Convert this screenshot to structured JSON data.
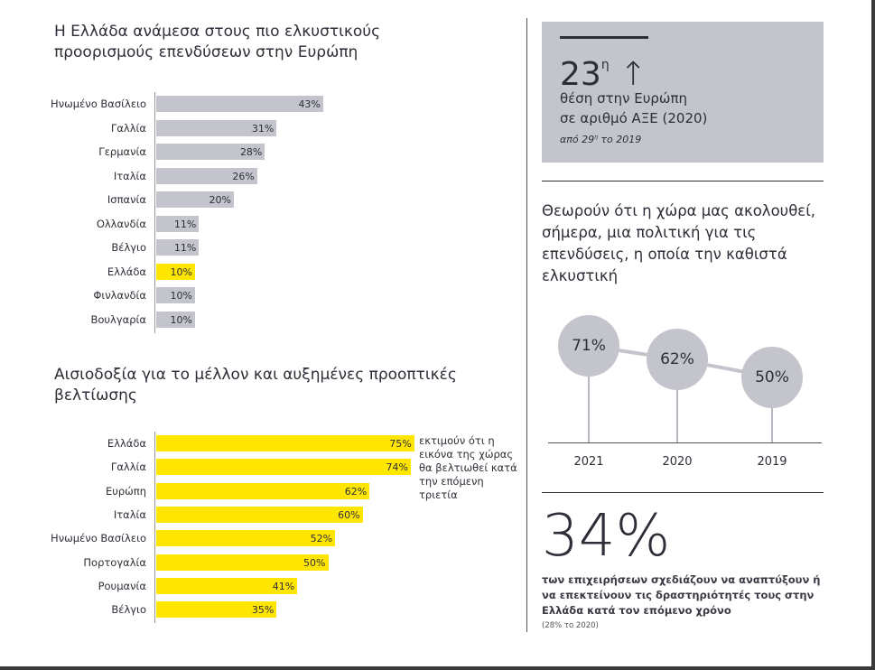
{
  "colors": {
    "grey_bar": "#c4c4cc",
    "yellow_bar": "#ffe600",
    "text": "#2e2e38"
  },
  "chart_data": [
    {
      "type": "bar",
      "orientation": "horizontal",
      "title": "Η Ελλάδα ανάμεσα στους πιο ελκυστικούς προορισμούς επενδύσεων στην Ευρώπη",
      "categories": [
        "Ηνωμένο Βασίλειο",
        "Γαλλία",
        "Γερμανία",
        "Ιταλία",
        "Ισπανία",
        "Ολλανδία",
        "Βέλγιο",
        "Ελλάδα",
        "Φινλανδία",
        "Βουλγαρία"
      ],
      "values": [
        43,
        31,
        28,
        26,
        20,
        11,
        11,
        10,
        10,
        10
      ],
      "labels": [
        "43%",
        "31%",
        "28%",
        "26%",
        "20%",
        "11%",
        "11%",
        "10%",
        "10%",
        "10%"
      ],
      "highlight": "Ελλάδα",
      "unit": "%"
    },
    {
      "type": "bar",
      "orientation": "horizontal",
      "title": "Αισιοδοξία για το μέλλον και αυξημένες προοπτικές βελτίωσης",
      "categories": [
        "Ελλάδα",
        "Γαλλία",
        "Ευρώπη",
        "Ιταλία",
        "Ηνωμένο Βασίλειο",
        "Πορτογαλία",
        "Ρουμανία",
        "Βέλγιο"
      ],
      "values": [
        75,
        74,
        62,
        60,
        52,
        50,
        41,
        35
      ],
      "labels": [
        "75%",
        "74%",
        "62%",
        "60%",
        "52%",
        "50%",
        "41%",
        "35%"
      ],
      "annotation": "εκτιμούν ότι η εικόνα της χώρας θα βελτιωθεί κατά την επόμενη τριετία",
      "unit": "%"
    },
    {
      "type": "line",
      "title": "Θεωρούν ότι η χώρα μας ακολουθεί, σήμερα, μια πολιτική για τις επενδύσεις, η οποία την καθιστά ελκυστική",
      "categories": [
        "2021",
        "2020",
        "2019"
      ],
      "values": [
        71,
        62,
        50
      ],
      "labels": [
        "71%",
        "62%",
        "50%"
      ],
      "unit": "%"
    }
  ],
  "rank": {
    "value": "23",
    "sup": "η",
    "arrow": "↑",
    "line1": "θέση στην Ευρώπη",
    "line2": "σε αριθμό ΑΞΕ (2020)",
    "note_pre": "από 29",
    "note_sup": "η",
    "note_post": " το 2019"
  },
  "stat": {
    "value": "34%",
    "text": "των επιχειρήσεων σχεδιάζουν να αναπτύξουν ή να επεκτείνουν τις δραστηριότητές τους στην Ελλάδα κατά τον επόμενο χρόνο",
    "note": "(28% το 2020)"
  }
}
